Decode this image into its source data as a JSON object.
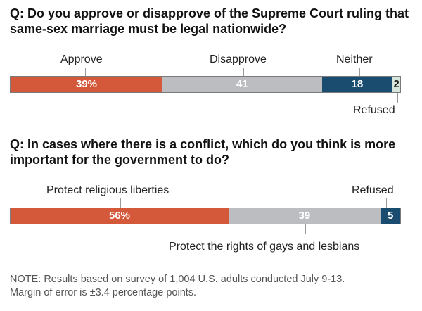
{
  "colors": {
    "approve": "#d4593a",
    "disapprove": "#bcbdc0",
    "neither": "#1a4c70",
    "refused": "#d7e6dd",
    "religious": "#d4593a",
    "gays": "#bcbdc0",
    "refused2": "#1a4c70"
  },
  "chart_data": [
    {
      "type": "bar",
      "stacked": true,
      "orientation": "horizontal",
      "title": "Q: Do you approve or disapprove of the Supreme Court ruling that same-sex marriage must be legal nationwide?",
      "categories": [
        "Approve",
        "Disapprove",
        "Neither",
        "Refused"
      ],
      "values": [
        39,
        41,
        18,
        2
      ],
      "value_labels": [
        "39%",
        "41",
        "18",
        "2"
      ]
    },
    {
      "type": "bar",
      "stacked": true,
      "orientation": "horizontal",
      "title": "Q: In cases where there is a conflict, which do you think is more important for the government to do?",
      "categories": [
        "Protect religious liberties",
        "Protect the rights of gays and lesbians",
        "Refused"
      ],
      "values": [
        56,
        39,
        5
      ],
      "value_labels": [
        "56%",
        "39",
        "5"
      ]
    }
  ],
  "note": {
    "line1": "NOTE: Results based on survey of 1,004 U.S. adults conducted July 9-13.",
    "line2": "Margin of error is ±3.4 percentage points."
  }
}
